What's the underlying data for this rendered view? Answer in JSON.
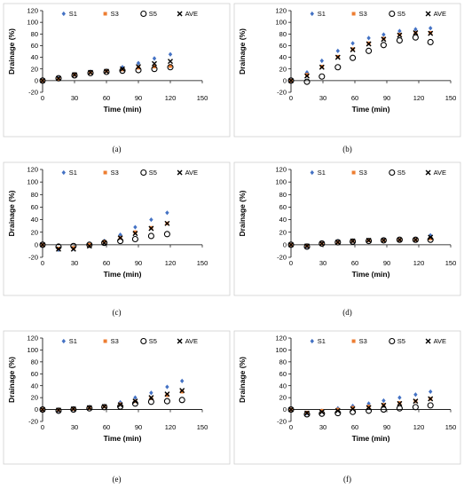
{
  "chart_data": [
    {
      "type": "scatter",
      "caption": "(a)",
      "xlabel": "Time (min)",
      "ylabel": "Drainage (%)",
      "xlim": [
        0,
        150
      ],
      "ylim": [
        -20,
        120
      ],
      "xticks": [
        0,
        30,
        60,
        90,
        120,
        150
      ],
      "yticks": [
        -20,
        0,
        20,
        40,
        60,
        80,
        100,
        120
      ],
      "legend_position": "top",
      "x": [
        0,
        15,
        30,
        45,
        60,
        75,
        90,
        105,
        120
      ],
      "series": [
        {
          "name": "S1",
          "marker": "diamond",
          "color": "#4472c4",
          "values": [
            0,
            4,
            10,
            15,
            17,
            23,
            30,
            38,
            45
          ]
        },
        {
          "name": "S3",
          "marker": "square",
          "color": "#ed7d31",
          "values": [
            0,
            3,
            10,
            14,
            16,
            19,
            22,
            24,
            25
          ]
        },
        {
          "name": "S5",
          "marker": "circle",
          "color": "#000000",
          "values": [
            0,
            4,
            9,
            13,
            15,
            17,
            18,
            20,
            23
          ]
        },
        {
          "name": "AVE",
          "marker": "x",
          "color": "#000000",
          "values": [
            0,
            4,
            10,
            14,
            16,
            20,
            24,
            29,
            33
          ]
        }
      ]
    },
    {
      "type": "scatter",
      "caption": "(b)",
      "xlabel": "Time (min)",
      "ylabel": "Drainage (%)",
      "xlim": [
        0,
        150
      ],
      "ylim": [
        -20,
        120
      ],
      "xticks": [
        0,
        30,
        60,
        90,
        120,
        150
      ],
      "yticks": [
        -20,
        0,
        20,
        40,
        60,
        80,
        100,
        120
      ],
      "legend_position": "top",
      "x": [
        0,
        15,
        29,
        44,
        58,
        73,
        87,
        102,
        117,
        131
      ],
      "series": [
        {
          "name": "S1",
          "marker": "diamond",
          "color": "#4472c4",
          "values": [
            0,
            14,
            34,
            51,
            64,
            73,
            79,
            85,
            88,
            90
          ]
        },
        {
          "name": "S3",
          "marker": "square",
          "color": "#ed7d31",
          "values": [
            0,
            10,
            24,
            41,
            54,
            64,
            72,
            79,
            82,
            82
          ]
        },
        {
          "name": "S5",
          "marker": "circle",
          "color": "#000000",
          "values": [
            0,
            -2,
            7,
            23,
            39,
            51,
            61,
            69,
            74,
            66
          ]
        },
        {
          "name": "AVE",
          "marker": "x",
          "color": "#000000",
          "values": [
            0,
            8,
            23,
            40,
            53,
            63,
            71,
            78,
            82,
            81
          ]
        }
      ]
    },
    {
      "type": "scatter",
      "caption": "(c)",
      "xlabel": "Time (min)",
      "ylabel": "Drainage (%)",
      "xlim": [
        0,
        150
      ],
      "ylim": [
        -20,
        120
      ],
      "xticks": [
        0,
        30,
        60,
        90,
        120,
        150
      ],
      "yticks": [
        -20,
        0,
        20,
        40,
        60,
        80,
        100,
        120
      ],
      "legend_position": "top",
      "x": [
        0,
        15,
        29,
        44,
        58,
        73,
        87,
        102,
        117
      ],
      "series": [
        {
          "name": "S1",
          "marker": "diamond",
          "color": "#4472c4",
          "values": [
            0,
            -8,
            -6,
            0,
            6,
            16,
            28,
            40,
            51
          ]
        },
        {
          "name": "S3",
          "marker": "square",
          "color": "#ed7d31",
          "values": [
            0,
            -6,
            -5,
            0,
            5,
            11,
            20,
            27,
            34
          ]
        },
        {
          "name": "S5",
          "marker": "circle",
          "color": "#000000",
          "values": [
            0,
            -3,
            -2,
            0,
            3,
            6,
            9,
            14,
            17
          ]
        },
        {
          "name": "AVE",
          "marker": "x",
          "color": "#000000",
          "values": [
            0,
            -7,
            -7,
            -2,
            3,
            11,
            18,
            26,
            34
          ]
        }
      ]
    },
    {
      "type": "scatter",
      "caption": "(d)",
      "xlabel": "Time (min)",
      "ylabel": "Drainage (%)",
      "xlim": [
        0,
        150
      ],
      "ylim": [
        -20,
        120
      ],
      "xticks": [
        0,
        30,
        60,
        90,
        120,
        150
      ],
      "yticks": [
        -20,
        0,
        20,
        40,
        60,
        80,
        100,
        120
      ],
      "legend_position": "top",
      "x": [
        0,
        15,
        29,
        44,
        58,
        73,
        87,
        102,
        117,
        131
      ],
      "series": [
        {
          "name": "S1",
          "marker": "diamond",
          "color": "#4472c4",
          "values": [
            0,
            -3,
            3,
            5,
            6,
            7,
            8,
            8,
            9,
            15
          ]
        },
        {
          "name": "S3",
          "marker": "square",
          "color": "#ed7d31",
          "values": [
            0,
            -2,
            2,
            4,
            6,
            7,
            7,
            8,
            8,
            10
          ]
        },
        {
          "name": "S5",
          "marker": "circle",
          "color": "#000000",
          "values": [
            0,
            -3,
            2,
            4,
            5,
            6,
            7,
            8,
            8,
            8
          ]
        },
        {
          "name": "AVE",
          "marker": "x",
          "color": "#000000",
          "values": [
            0,
            -2,
            2,
            4,
            6,
            7,
            7,
            8,
            8,
            12
          ]
        }
      ]
    },
    {
      "type": "scatter",
      "caption": "(e)",
      "xlabel": "Time (min)",
      "ylabel": "Drainage (%)",
      "xlim": [
        0,
        150
      ],
      "ylim": [
        -20,
        120
      ],
      "xticks": [
        0,
        30,
        60,
        90,
        120,
        150
      ],
      "yticks": [
        -20,
        0,
        20,
        40,
        60,
        80,
        100,
        120
      ],
      "legend_position": "top",
      "x": [
        0,
        15,
        29,
        44,
        58,
        73,
        87,
        102,
        117,
        131
      ],
      "series": [
        {
          "name": "S1",
          "marker": "diamond",
          "color": "#4472c4",
          "values": [
            0,
            -2,
            2,
            4,
            6,
            12,
            20,
            28,
            38,
            48
          ]
        },
        {
          "name": "S3",
          "marker": "square",
          "color": "#ed7d31",
          "values": [
            0,
            -1,
            1,
            3,
            5,
            9,
            14,
            19,
            24,
            30
          ]
        },
        {
          "name": "S5",
          "marker": "circle",
          "color": "#000000",
          "values": [
            0,
            -2,
            0,
            2,
            4,
            5,
            10,
            13,
            14,
            16
          ]
        },
        {
          "name": "AVE",
          "marker": "x",
          "color": "#000000",
          "values": [
            0,
            -1,
            1,
            3,
            5,
            8,
            14,
            20,
            26,
            32
          ]
        }
      ]
    },
    {
      "type": "scatter",
      "caption": "(f)",
      "xlabel": "Time (min)",
      "ylabel": "Drainage (%)",
      "xlim": [
        0,
        150
      ],
      "ylim": [
        -20,
        120
      ],
      "xticks": [
        0,
        30,
        60,
        90,
        120,
        150
      ],
      "yticks": [
        -20,
        0,
        20,
        40,
        60,
        80,
        100,
        120
      ],
      "legend_position": "top",
      "x": [
        0,
        15,
        29,
        44,
        58,
        73,
        87,
        102,
        117,
        131
      ],
      "series": [
        {
          "name": "S1",
          "marker": "diamond",
          "color": "#4472c4",
          "values": [
            0,
            -6,
            -2,
            2,
            6,
            10,
            15,
            20,
            25,
            30
          ]
        },
        {
          "name": "S3",
          "marker": "square",
          "color": "#ed7d31",
          "values": [
            0,
            -5,
            -2,
            0,
            3,
            5,
            8,
            11,
            14,
            18
          ]
        },
        {
          "name": "S5",
          "marker": "circle",
          "color": "#000000",
          "values": [
            0,
            -8,
            -7,
            -6,
            -4,
            -2,
            0,
            2,
            4,
            7
          ]
        },
        {
          "name": "AVE",
          "marker": "x",
          "color": "#000000",
          "values": [
            0,
            -6,
            -4,
            -2,
            1,
            3,
            7,
            10,
            14,
            18
          ]
        }
      ]
    }
  ]
}
